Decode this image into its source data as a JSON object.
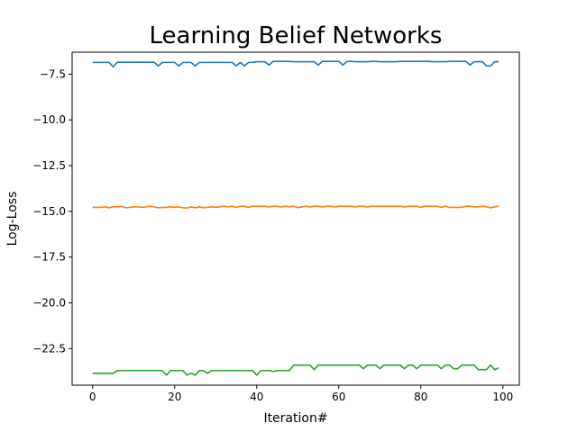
{
  "chart_data": {
    "type": "line",
    "title": "Learning Belief Networks",
    "xlabel": "Iteration#",
    "ylabel": "Log-Loss",
    "xlim": [
      -5,
      104
    ],
    "ylim": [
      -24.5,
      -6.3
    ],
    "xticks": [
      0,
      20,
      40,
      60,
      80,
      100
    ],
    "yticks": [
      -22.5,
      -20.0,
      -17.5,
      -15.0,
      -12.5,
      -10.0,
      -7.5
    ],
    "x": [
      0,
      1,
      2,
      3,
      4,
      5,
      6,
      7,
      8,
      9,
      10,
      11,
      12,
      13,
      14,
      15,
      16,
      17,
      18,
      19,
      20,
      21,
      22,
      23,
      24,
      25,
      26,
      27,
      28,
      29,
      30,
      31,
      32,
      33,
      34,
      35,
      36,
      37,
      38,
      39,
      40,
      41,
      42,
      43,
      44,
      45,
      46,
      47,
      48,
      49,
      50,
      51,
      52,
      53,
      54,
      55,
      56,
      57,
      58,
      59,
      60,
      61,
      62,
      63,
      64,
      65,
      66,
      67,
      68,
      69,
      70,
      71,
      72,
      73,
      74,
      75,
      76,
      77,
      78,
      79,
      80,
      81,
      82,
      83,
      84,
      85,
      86,
      87,
      88,
      89,
      90,
      91,
      92,
      93,
      94,
      95,
      96,
      97,
      98,
      99
    ],
    "series": [
      {
        "color": "#1f77b4",
        "values": [
          -6.86,
          -6.86,
          -6.86,
          -6.86,
          -6.86,
          -7.1,
          -6.85,
          -6.85,
          -6.85,
          -6.85,
          -6.85,
          -6.85,
          -6.85,
          -6.85,
          -6.85,
          -6.85,
          -7.05,
          -6.86,
          -6.86,
          -6.86,
          -6.86,
          -7.05,
          -6.86,
          -6.86,
          -6.86,
          -7.05,
          -6.86,
          -6.86,
          -6.86,
          -6.86,
          -6.86,
          -6.86,
          -6.86,
          -6.86,
          -6.86,
          -7.05,
          -6.86,
          -7.05,
          -6.86,
          -6.86,
          -6.82,
          -6.82,
          -6.82,
          -7.0,
          -6.8,
          -6.8,
          -6.8,
          -6.8,
          -6.8,
          -6.82,
          -6.82,
          -6.82,
          -6.82,
          -6.82,
          -6.82,
          -7.0,
          -6.8,
          -6.8,
          -6.8,
          -6.8,
          -6.8,
          -7.0,
          -6.8,
          -6.8,
          -6.82,
          -6.82,
          -6.82,
          -6.82,
          -6.8,
          -6.8,
          -6.82,
          -6.82,
          -6.82,
          -6.82,
          -6.82,
          -6.8,
          -6.8,
          -6.8,
          -6.8,
          -6.8,
          -6.8,
          -6.8,
          -6.8,
          -6.82,
          -6.82,
          -6.82,
          -6.82,
          -6.8,
          -6.8,
          -6.8,
          -6.8,
          -6.8,
          -7.0,
          -6.82,
          -6.82,
          -6.82,
          -7.05,
          -7.05,
          -6.82,
          -6.82
        ]
      },
      {
        "color": "#ff7f0e",
        "values": [
          -14.78,
          -14.78,
          -14.78,
          -14.75,
          -14.8,
          -14.75,
          -14.75,
          -14.72,
          -14.8,
          -14.78,
          -14.75,
          -14.75,
          -14.78,
          -14.75,
          -14.72,
          -14.75,
          -14.8,
          -14.78,
          -14.78,
          -14.75,
          -14.78,
          -14.75,
          -14.8,
          -14.82,
          -14.75,
          -14.8,
          -14.75,
          -14.8,
          -14.78,
          -14.75,
          -14.78,
          -14.75,
          -14.72,
          -14.75,
          -14.72,
          -14.78,
          -14.72,
          -14.72,
          -14.78,
          -14.72,
          -14.72,
          -14.72,
          -14.72,
          -14.75,
          -14.72,
          -14.72,
          -14.75,
          -14.72,
          -14.75,
          -14.72,
          -14.8,
          -14.75,
          -14.72,
          -14.75,
          -14.72,
          -14.72,
          -14.75,
          -14.72,
          -14.72,
          -14.75,
          -14.72,
          -14.72,
          -14.72,
          -14.72,
          -14.75,
          -14.72,
          -14.72,
          -14.75,
          -14.72,
          -14.72,
          -14.72,
          -14.72,
          -14.72,
          -14.72,
          -14.72,
          -14.72,
          -14.75,
          -14.72,
          -14.72,
          -14.72,
          -14.78,
          -14.72,
          -14.72,
          -14.72,
          -14.72,
          -14.78,
          -14.72,
          -14.78,
          -14.78,
          -14.78,
          -14.78,
          -14.72,
          -14.72,
          -14.75,
          -14.75,
          -14.72,
          -14.75,
          -14.8,
          -14.75,
          -14.72
        ]
      },
      {
        "color": "#2ca02c",
        "values": [
          -23.85,
          -23.85,
          -23.85,
          -23.85,
          -23.85,
          -23.85,
          -23.7,
          -23.7,
          -23.7,
          -23.7,
          -23.7,
          -23.7,
          -23.7,
          -23.7,
          -23.7,
          -23.7,
          -23.7,
          -23.7,
          -23.95,
          -23.7,
          -23.7,
          -23.7,
          -23.7,
          -23.95,
          -23.85,
          -23.95,
          -23.7,
          -23.7,
          -23.85,
          -23.7,
          -23.7,
          -23.7,
          -23.7,
          -23.7,
          -23.7,
          -23.7,
          -23.7,
          -23.7,
          -23.7,
          -23.7,
          -23.95,
          -23.7,
          -23.7,
          -23.7,
          -23.75,
          -23.7,
          -23.7,
          -23.7,
          -23.7,
          -23.4,
          -23.4,
          -23.4,
          -23.4,
          -23.4,
          -23.65,
          -23.4,
          -23.4,
          -23.4,
          -23.4,
          -23.4,
          -23.4,
          -23.4,
          -23.4,
          -23.4,
          -23.4,
          -23.4,
          -23.6,
          -23.4,
          -23.4,
          -23.4,
          -23.6,
          -23.4,
          -23.4,
          -23.4,
          -23.4,
          -23.4,
          -23.6,
          -23.4,
          -23.4,
          -23.6,
          -23.4,
          -23.4,
          -23.4,
          -23.4,
          -23.4,
          -23.6,
          -23.4,
          -23.4,
          -23.6,
          -23.6,
          -23.4,
          -23.4,
          -23.4,
          -23.4,
          -23.65,
          -23.65,
          -23.65,
          -23.4,
          -23.65,
          -23.55
        ]
      }
    ],
    "grid": false,
    "legend": "none"
  }
}
